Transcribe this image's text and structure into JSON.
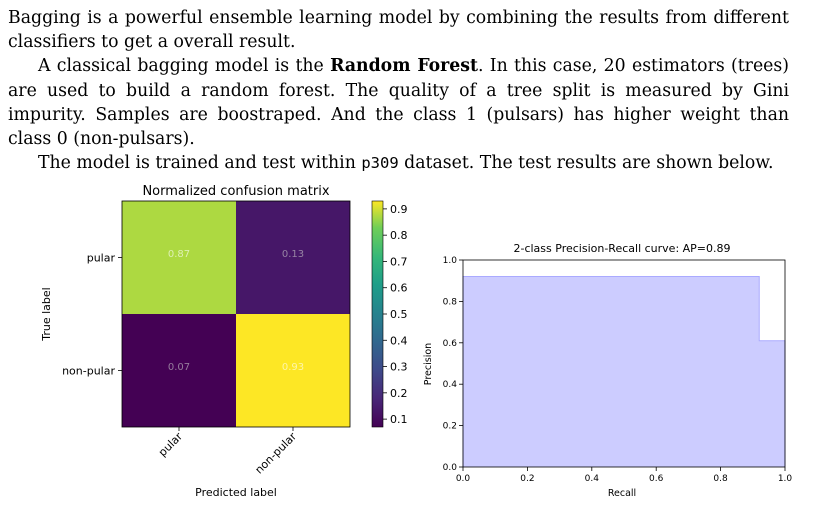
{
  "paragraphs": {
    "p1": "Bagging is a powerful ensemble learning model by combining the results from different classifiers to get a overall result.",
    "p2_before_bold": "A classical bagging model is the ",
    "p2_bold": "Random Forest",
    "p2_after_bold": ". In this case, 20 estimators (trees) are used to build a random forest. The quality of a tree split is measured by Gini impurity. Samples are boostraped. And the class 1 (pulsars) has higher weight than class 0 (non-pulsars).",
    "p3_before_code": "The model is trained and test within ",
    "p3_code": "p309",
    "p3_after_code": " dataset. The test results are shown below."
  },
  "chart_data": [
    {
      "type": "heatmap",
      "title": "Normalized confusion matrix",
      "xlabel": "Predicted label",
      "ylabel": "True label",
      "x_categories": [
        "pular",
        "non-pular"
      ],
      "y_categories": [
        "pular",
        "non-pular"
      ],
      "values": [
        [
          0.87,
          0.13
        ],
        [
          0.07,
          0.93
        ]
      ],
      "cell_labels": [
        [
          "0.87",
          "0.13"
        ],
        [
          "0.07",
          "0.93"
        ]
      ],
      "colormap": "viridis",
      "colorbar_range": [
        0.07,
        0.93
      ],
      "colorbar_ticks": [
        "0.1",
        "0.2",
        "0.3",
        "0.4",
        "0.5",
        "0.6",
        "0.7",
        "0.8",
        "0.9"
      ]
    },
    {
      "type": "area",
      "title": "2-class Precision-Recall curve: AP=0.89",
      "xlabel": "Recall",
      "ylabel": "Precision",
      "x": [
        0.0,
        0.0,
        0.92,
        0.92,
        1.0,
        1.0
      ],
      "y": [
        0.0,
        0.92,
        0.92,
        0.61,
        0.61,
        0.0
      ],
      "xlim": [
        0.0,
        1.0
      ],
      "ylim": [
        0.0,
        1.0
      ],
      "xticks": [
        "0.0",
        "0.2",
        "0.4",
        "0.6",
        "0.8",
        "1.0"
      ],
      "yticks": [
        "0.0",
        "0.2",
        "0.4",
        "0.6",
        "0.8",
        "1.0"
      ],
      "fill_color": "#ccccff",
      "line_color": "#aaaaff"
    }
  ]
}
